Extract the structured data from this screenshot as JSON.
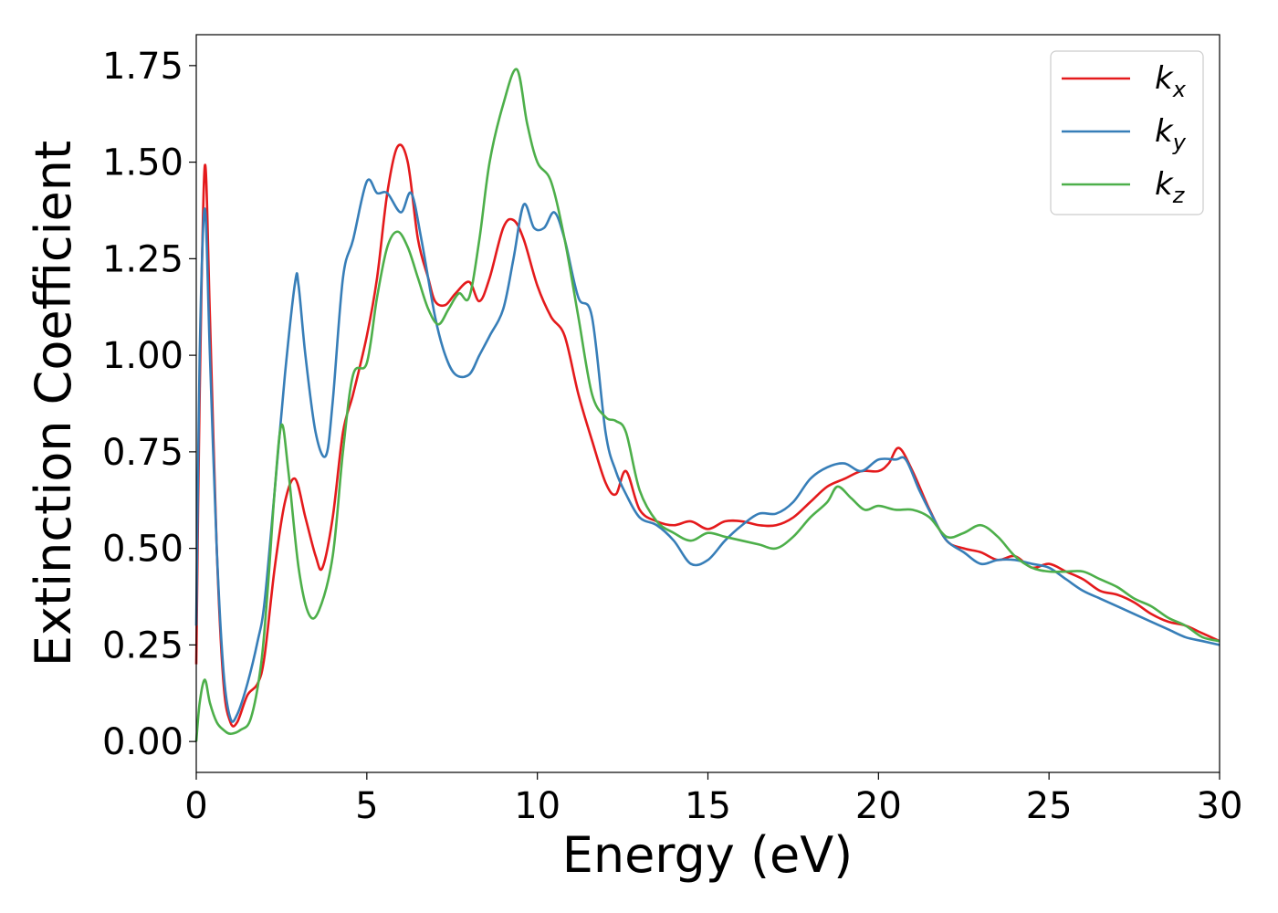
{
  "chart_data": {
    "type": "line",
    "xlabel": "Energy (eV)",
    "ylabel": "Extinction Coefficient",
    "xlim": [
      0,
      30
    ],
    "ylim": [
      -0.08,
      1.83
    ],
    "xticks": [
      0,
      5,
      10,
      15,
      20,
      25,
      30
    ],
    "xtick_labels": [
      "0",
      "5",
      "10",
      "15",
      "20",
      "25",
      "30"
    ],
    "yticks": [
      0.0,
      0.25,
      0.5,
      0.75,
      1.0,
      1.25,
      1.5,
      1.75
    ],
    "ytick_labels": [
      "0.00",
      "0.25",
      "0.50",
      "0.75",
      "1.00",
      "1.25",
      "1.50",
      "1.75"
    ],
    "grid": false,
    "legend_position": "top-right",
    "series": [
      {
        "name": "k_x",
        "label_base": "k",
        "label_sub": "x",
        "color": "#e41a1c",
        "x": [
          0,
          0.1,
          0.25,
          0.4,
          0.6,
          0.8,
          1.0,
          1.2,
          1.5,
          1.8,
          2.0,
          2.3,
          2.6,
          2.9,
          3.2,
          3.5,
          3.7,
          4.0,
          4.3,
          4.6,
          5.0,
          5.3,
          5.6,
          5.9,
          6.2,
          6.5,
          6.8,
          7.0,
          7.3,
          7.6,
          8.0,
          8.3,
          8.6,
          9.0,
          9.3,
          9.6,
          10.0,
          10.4,
          10.8,
          11.2,
          11.6,
          12.0,
          12.3,
          12.6,
          13.0,
          13.5,
          14.0,
          14.5,
          15.0,
          15.5,
          16.0,
          16.5,
          17.0,
          17.5,
          18.0,
          18.5,
          19.0,
          19.5,
          20.0,
          20.3,
          20.6,
          21.0,
          21.5,
          22.0,
          22.5,
          23.0,
          23.5,
          24.0,
          24.5,
          25.0,
          25.5,
          26.0,
          26.5,
          27.0,
          27.5,
          28.0,
          28.5,
          29.0,
          29.5,
          30.0
        ],
        "y": [
          0.2,
          0.9,
          1.49,
          1.1,
          0.5,
          0.15,
          0.05,
          0.05,
          0.12,
          0.15,
          0.22,
          0.45,
          0.62,
          0.68,
          0.58,
          0.48,
          0.45,
          0.58,
          0.8,
          0.9,
          1.05,
          1.2,
          1.42,
          1.54,
          1.5,
          1.3,
          1.2,
          1.14,
          1.13,
          1.16,
          1.19,
          1.14,
          1.2,
          1.33,
          1.35,
          1.3,
          1.18,
          1.1,
          1.05,
          0.9,
          0.78,
          0.67,
          0.64,
          0.7,
          0.6,
          0.57,
          0.56,
          0.57,
          0.55,
          0.57,
          0.57,
          0.56,
          0.56,
          0.58,
          0.62,
          0.66,
          0.68,
          0.7,
          0.7,
          0.72,
          0.76,
          0.7,
          0.6,
          0.52,
          0.5,
          0.49,
          0.47,
          0.48,
          0.45,
          0.46,
          0.44,
          0.42,
          0.39,
          0.38,
          0.36,
          0.33,
          0.31,
          0.3,
          0.28,
          0.26
        ]
      },
      {
        "name": "k_y",
        "label_base": "k",
        "label_sub": "y",
        "color": "#377eb8",
        "x": [
          0,
          0.1,
          0.25,
          0.4,
          0.6,
          0.8,
          1.0,
          1.2,
          1.5,
          1.8,
          2.0,
          2.3,
          2.6,
          2.9,
          3.0,
          3.2,
          3.5,
          3.8,
          4.0,
          4.3,
          4.6,
          5.0,
          5.3,
          5.6,
          6.0,
          6.3,
          6.6,
          7.0,
          7.3,
          7.6,
          8.0,
          8.3,
          8.6,
          9.0,
          9.3,
          9.6,
          9.9,
          10.2,
          10.5,
          10.8,
          11.2,
          11.6,
          12.0,
          12.3,
          12.6,
          13.0,
          13.5,
          14.0,
          14.5,
          15.0,
          15.5,
          16.0,
          16.5,
          17.0,
          17.5,
          18.0,
          18.5,
          19.0,
          19.5,
          20.0,
          20.5,
          20.8,
          21.2,
          21.6,
          22.0,
          22.5,
          23.0,
          23.5,
          24.0,
          24.5,
          25.0,
          25.5,
          26.0,
          26.5,
          27.0,
          27.5,
          28.0,
          28.5,
          29.0,
          29.5,
          30.0
        ],
        "y": [
          0.3,
          1.0,
          1.38,
          1.0,
          0.5,
          0.18,
          0.06,
          0.07,
          0.15,
          0.26,
          0.36,
          0.65,
          0.95,
          1.19,
          1.18,
          1.0,
          0.8,
          0.74,
          0.88,
          1.2,
          1.3,
          1.45,
          1.42,
          1.42,
          1.37,
          1.42,
          1.3,
          1.1,
          1.0,
          0.95,
          0.95,
          1.0,
          1.05,
          1.12,
          1.25,
          1.39,
          1.33,
          1.33,
          1.37,
          1.3,
          1.15,
          1.1,
          0.8,
          0.7,
          0.64,
          0.58,
          0.56,
          0.52,
          0.46,
          0.47,
          0.52,
          0.56,
          0.59,
          0.59,
          0.62,
          0.68,
          0.71,
          0.72,
          0.7,
          0.73,
          0.73,
          0.73,
          0.65,
          0.58,
          0.52,
          0.49,
          0.46,
          0.47,
          0.47,
          0.46,
          0.45,
          0.42,
          0.39,
          0.37,
          0.35,
          0.33,
          0.31,
          0.29,
          0.27,
          0.26,
          0.25
        ]
      },
      {
        "name": "k_z",
        "label_base": "k",
        "label_sub": "z",
        "color": "#4daf4a",
        "x": [
          0,
          0.1,
          0.25,
          0.4,
          0.6,
          0.8,
          1.0,
          1.3,
          1.6,
          1.9,
          2.1,
          2.3,
          2.5,
          2.7,
          3.0,
          3.3,
          3.6,
          4.0,
          4.3,
          4.6,
          5.0,
          5.3,
          5.6,
          5.9,
          6.2,
          6.5,
          6.8,
          7.1,
          7.4,
          7.7,
          8.0,
          8.3,
          8.6,
          9.0,
          9.4,
          9.7,
          10.0,
          10.4,
          10.8,
          11.2,
          11.6,
          12.0,
          12.3,
          12.6,
          13.0,
          13.5,
          14.0,
          14.5,
          15.0,
          15.5,
          16.0,
          16.5,
          17.0,
          17.5,
          18.0,
          18.5,
          18.8,
          19.2,
          19.6,
          20.0,
          20.5,
          21.0,
          21.5,
          22.0,
          22.5,
          23.0,
          23.5,
          24.0,
          24.5,
          25.0,
          25.5,
          26.0,
          26.5,
          27.0,
          27.5,
          28.0,
          28.5,
          29.0,
          29.5,
          30.0
        ],
        "y": [
          0.0,
          0.1,
          0.16,
          0.1,
          0.05,
          0.03,
          0.02,
          0.03,
          0.06,
          0.2,
          0.4,
          0.65,
          0.82,
          0.7,
          0.45,
          0.33,
          0.34,
          0.48,
          0.75,
          0.95,
          0.98,
          1.15,
          1.28,
          1.32,
          1.28,
          1.2,
          1.12,
          1.08,
          1.12,
          1.16,
          1.15,
          1.3,
          1.5,
          1.65,
          1.74,
          1.6,
          1.5,
          1.45,
          1.3,
          1.1,
          0.9,
          0.84,
          0.83,
          0.8,
          0.65,
          0.57,
          0.54,
          0.52,
          0.54,
          0.53,
          0.52,
          0.51,
          0.5,
          0.53,
          0.58,
          0.62,
          0.66,
          0.63,
          0.6,
          0.61,
          0.6,
          0.6,
          0.58,
          0.53,
          0.54,
          0.56,
          0.53,
          0.48,
          0.45,
          0.44,
          0.44,
          0.44,
          0.42,
          0.4,
          0.37,
          0.35,
          0.32,
          0.3,
          0.27,
          0.26
        ]
      }
    ]
  }
}
